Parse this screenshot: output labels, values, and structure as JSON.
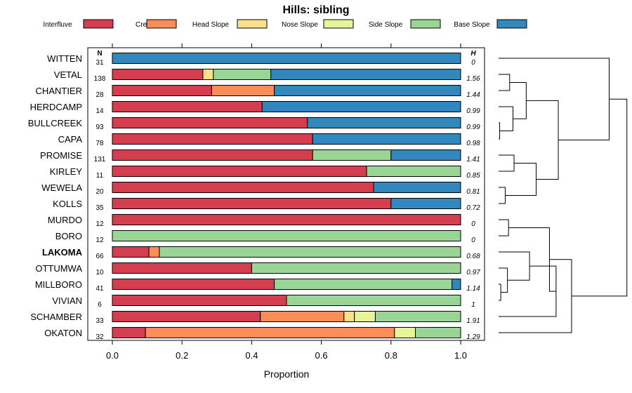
{
  "chart_data": {
    "type": "bar",
    "subtype": "stacked-horizontal-proportion-with-dendrogram",
    "title": "Hills: sibling",
    "xlabel": "Proportion",
    "ylabel": "",
    "xlim": [
      0,
      1
    ],
    "xticks": [
      "0.0",
      "0.2",
      "0.4",
      "0.6",
      "0.8",
      "1.0"
    ],
    "n_header": "N",
    "h_header": "H",
    "highlight": "LAKOMA",
    "legend": [
      {
        "name": "Interfluve",
        "color": "#d53e4f"
      },
      {
        "name": "Crest",
        "color": "#fc8d59"
      },
      {
        "name": "Head Slope",
        "color": "#fee08b"
      },
      {
        "name": "Nose Slope",
        "color": "#e6f598"
      },
      {
        "name": "Side Slope",
        "color": "#99d594"
      },
      {
        "name": "Base Slope",
        "color": "#3288bd"
      }
    ],
    "rows": [
      {
        "name": "WITTEN",
        "n": "31",
        "h": "0",
        "values": [
          0,
          0,
          0,
          0,
          0,
          1.0
        ]
      },
      {
        "name": "VETAL",
        "n": "138",
        "h": "1.56",
        "values": [
          0.26,
          0,
          0.03,
          0,
          0.165,
          0.545
        ]
      },
      {
        "name": "CHANTIER",
        "n": "28",
        "h": "1.44",
        "values": [
          0.285,
          0.18,
          0,
          0,
          0,
          0.535
        ]
      },
      {
        "name": "HERDCAMP",
        "n": "14",
        "h": "0.99",
        "values": [
          0.43,
          0,
          0,
          0,
          0,
          0.57
        ]
      },
      {
        "name": "BULLCREEK",
        "n": "93",
        "h": "0.99",
        "values": [
          0.56,
          0,
          0,
          0,
          0,
          0.44
        ]
      },
      {
        "name": "CAPA",
        "n": "78",
        "h": "0.98",
        "values": [
          0.575,
          0,
          0,
          0,
          0,
          0.425
        ]
      },
      {
        "name": "PROMISE",
        "n": "131",
        "h": "1.41",
        "values": [
          0.575,
          0,
          0,
          0,
          0.225,
          0.2
        ]
      },
      {
        "name": "KIRLEY",
        "n": "11",
        "h": "0.85",
        "values": [
          0.73,
          0,
          0,
          0,
          0.27,
          0
        ]
      },
      {
        "name": "WEWELA",
        "n": "20",
        "h": "0.81",
        "values": [
          0.75,
          0,
          0,
          0,
          0,
          0.25
        ]
      },
      {
        "name": "KOLLS",
        "n": "35",
        "h": "0.72",
        "values": [
          0.8,
          0,
          0,
          0,
          0,
          0.2
        ]
      },
      {
        "name": "MURDO",
        "n": "12",
        "h": "0",
        "values": [
          1.0,
          0,
          0,
          0,
          0,
          0
        ]
      },
      {
        "name": "BORO",
        "n": "12",
        "h": "0",
        "values": [
          0,
          0,
          0,
          0,
          1.0,
          0
        ]
      },
      {
        "name": "LAKOMA",
        "n": "66",
        "h": "0.68",
        "values": [
          0.105,
          0.03,
          0,
          0,
          0.865,
          0
        ]
      },
      {
        "name": "OTTUMWA",
        "n": "10",
        "h": "0.97",
        "values": [
          0.4,
          0,
          0,
          0,
          0.6,
          0
        ]
      },
      {
        "name": "MILLBORO",
        "n": "41",
        "h": "1.14",
        "values": [
          0.465,
          0,
          0,
          0,
          0.51,
          0.025
        ]
      },
      {
        "name": "VIVIAN",
        "n": "6",
        "h": "1",
        "values": [
          0.5,
          0,
          0,
          0,
          0.5,
          0
        ]
      },
      {
        "name": "SCHAMBER",
        "n": "33",
        "h": "1.91",
        "values": [
          0.425,
          0.24,
          0.03,
          0.06,
          0.245,
          0
        ]
      },
      {
        "name": "OKATON",
        "n": "32",
        "h": "1.29",
        "values": [
          0.095,
          0.715,
          0,
          0.06,
          0.13,
          0
        ]
      }
    ],
    "dendrogram": [
      {
        "a": 1,
        "b": 2,
        "h": 0.5
      },
      {
        "a": 4,
        "b": 5,
        "h": 0.05
      },
      {
        "a": 3,
        "b": "c1",
        "h": 0.65
      },
      {
        "a": "c0",
        "b": "c2",
        "h": 1.25
      },
      {
        "a": 6,
        "b": 7,
        "h": 0.7
      },
      {
        "a": 8,
        "b": 9,
        "h": 0.3
      },
      {
        "a": "c4",
        "b": "c5",
        "h": 1.7
      },
      {
        "a": "c3",
        "b": "c6",
        "h": 2.7
      },
      {
        "a": 0,
        "b": "c7",
        "h": 5.0
      },
      {
        "a": 10,
        "b": 11,
        "h": 0.45
      },
      {
        "a": 14,
        "b": 15,
        "h": 0.1
      },
      {
        "a": 13,
        "b": "c10",
        "h": 0.4
      },
      {
        "a": 12,
        "b": "c11",
        "h": 1.4
      },
      {
        "a": "c12",
        "b": 16,
        "h": 2.6
      },
      {
        "a": "c9",
        "b": "c13",
        "h": 2.3
      },
      {
        "a": "c14",
        "b": 17,
        "h": 3.3
      },
      {
        "a": "c8",
        "b": "c15",
        "h": 5.8
      }
    ]
  }
}
